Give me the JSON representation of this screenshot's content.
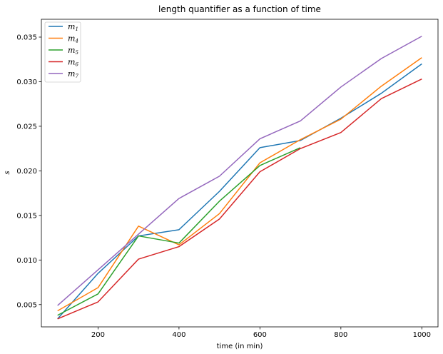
{
  "chart_data": {
    "type": "line",
    "title": "length quantifier as a function of time",
    "xlabel": "time (in min)",
    "ylabel": "s",
    "xlim": [
      60,
      1040
    ],
    "ylim": [
      0.0025,
      0.037
    ],
    "xticks": [
      200,
      400,
      600,
      800,
      1000
    ],
    "xtick_labels": [
      "200",
      "400",
      "600",
      "800",
      "1000"
    ],
    "yticks": [
      0.005,
      0.01,
      0.015,
      0.02,
      0.025,
      0.03,
      0.035
    ],
    "ytick_labels": [
      "0.005",
      "0.010",
      "0.015",
      "0.020",
      "0.025",
      "0.030",
      "0.035"
    ],
    "grid": false,
    "legend_position": "top-left",
    "x": [
      100,
      200,
      300,
      400,
      500,
      600,
      700,
      800,
      900,
      1000
    ],
    "series": [
      {
        "name": "m",
        "sub": "1",
        "color": "#1f77b4",
        "values": [
          0.0034,
          0.0085,
          0.0127,
          0.0134,
          0.0177,
          0.0226,
          0.0234,
          0.0259,
          0.0287,
          0.032
        ]
      },
      {
        "name": "m",
        "sub": "4",
        "color": "#ff7f0e",
        "values": [
          0.0043,
          0.0069,
          0.0138,
          0.0117,
          0.0152,
          0.0209,
          0.0235,
          0.0258,
          0.0295,
          0.0327
        ]
      },
      {
        "name": "m",
        "sub": "5",
        "color": "#2ca02c",
        "values": [
          0.0038,
          0.0062,
          0.0127,
          0.0119,
          0.0166,
          0.0206,
          0.0226,
          null,
          null,
          null
        ]
      },
      {
        "name": "m",
        "sub": "6",
        "color": "#d62728",
        "values": [
          0.0034,
          0.0053,
          0.0101,
          0.0115,
          0.0146,
          0.0199,
          0.0225,
          0.0243,
          0.0281,
          0.0303
        ]
      },
      {
        "name": "m",
        "sub": "7",
        "color": "#9467bd",
        "values": [
          0.0049,
          0.0089,
          0.0129,
          0.0169,
          0.0194,
          0.0236,
          0.0256,
          0.0294,
          0.0326,
          0.0351
        ]
      }
    ]
  }
}
